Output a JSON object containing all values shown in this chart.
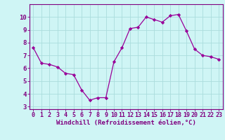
{
  "x": [
    0,
    1,
    2,
    3,
    4,
    5,
    6,
    7,
    8,
    9,
    10,
    11,
    12,
    13,
    14,
    15,
    16,
    17,
    18,
    19,
    20,
    21,
    22,
    23
  ],
  "y": [
    7.6,
    6.4,
    6.3,
    6.1,
    5.6,
    5.5,
    4.3,
    3.5,
    3.7,
    3.7,
    6.5,
    7.6,
    9.1,
    9.2,
    10.0,
    9.8,
    9.6,
    10.1,
    10.2,
    8.9,
    7.5,
    7.0,
    6.9,
    6.7
  ],
  "line_color": "#990099",
  "marker": "D",
  "marker_size": 2.2,
  "bg_color": "#cff5f5",
  "grid_color": "#aadddd",
  "xlabel": "Windchill (Refroidissement éolien,°C)",
  "xlabel_color": "#800080",
  "tick_color": "#800080",
  "xlim": [
    -0.5,
    23.5
  ],
  "ylim": [
    2.8,
    11.0
  ],
  "yticks": [
    3,
    4,
    5,
    6,
    7,
    8,
    9,
    10
  ],
  "xticks": [
    0,
    1,
    2,
    3,
    4,
    5,
    6,
    7,
    8,
    9,
    10,
    11,
    12,
    13,
    14,
    15,
    16,
    17,
    18,
    19,
    20,
    21,
    22,
    23
  ],
  "spine_color": "#800080",
  "label_fontsize": 6.5,
  "tick_fontsize": 6.0,
  "ytick_fontsize": 6.5
}
